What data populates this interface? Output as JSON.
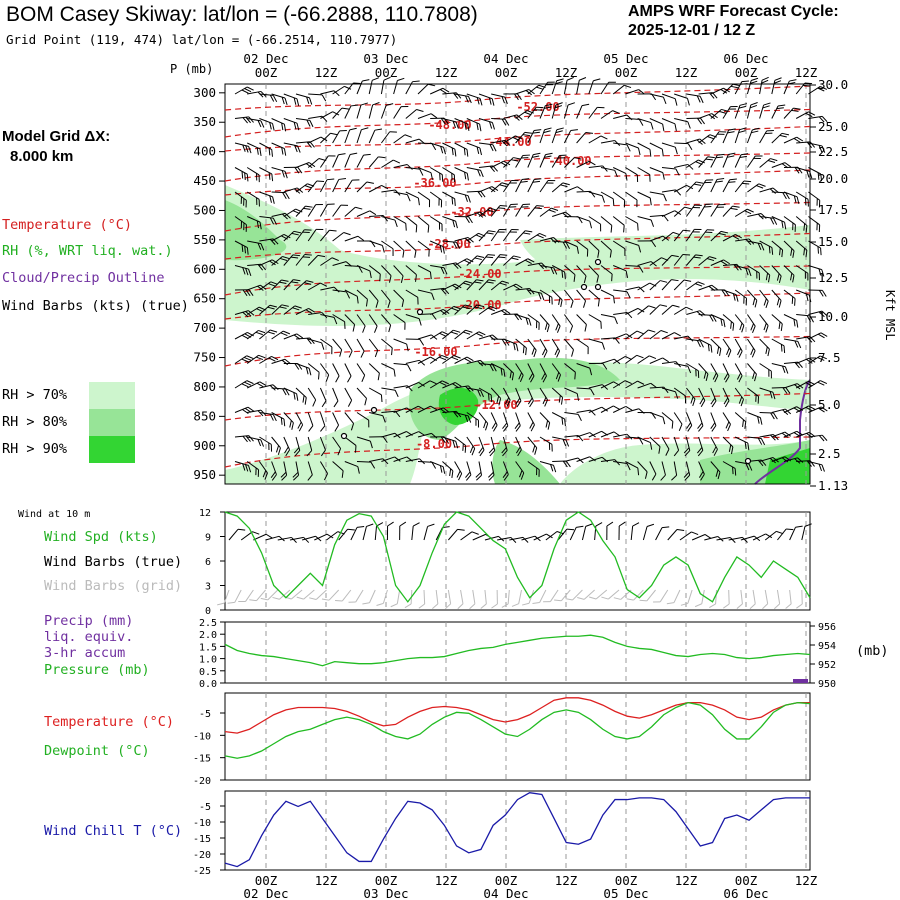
{
  "header": {
    "title": "BOM Casey Skiway:  lat/lon = (-66.2888, 110.7808)",
    "subtitle": "Grid Point (119, 474) lat/lon = (-66.2514, 110.7977)",
    "cycle_label": "AMPS WRF Forecast Cycle:",
    "cycle_value": "2025-12-01 / 12  Z"
  },
  "left_panel": {
    "grid_label": "Model Grid ΔX:",
    "grid_value": "8.000 km",
    "legend": [
      {
        "text": "Temperature (°C)",
        "color": "#d42020"
      },
      {
        "text": "RH (%, WRT liq. wat.)",
        "color": "#22b022"
      },
      {
        "text": "Cloud/Precip Outline",
        "color": "#7030a0"
      },
      {
        "text": "Wind Barbs (kts) (true)",
        "color": "#000000"
      }
    ],
    "rh_key": [
      {
        "text": "RH > 70%",
        "color": "#cdf5cd"
      },
      {
        "text": "RH > 80%",
        "color": "#97e497"
      },
      {
        "text": "RH > 90%",
        "color": "#33d533"
      }
    ]
  },
  "time_axis": {
    "ticks": [
      "00Z",
      "12Z",
      "00Z",
      "12Z",
      "00Z",
      "12Z",
      "00Z",
      "12Z",
      "00Z",
      "12Z"
    ],
    "dates": [
      "02 Dec",
      "03 Dec",
      "04 Dec",
      "05 Dec",
      "06 Dec"
    ]
  },
  "chart_data": [
    {
      "type": "heatmap",
      "name": "Time-height cross-section",
      "y_title": "P (mb)",
      "pressure_levels": [
        300,
        350,
        400,
        450,
        500,
        550,
        600,
        650,
        700,
        750,
        800,
        850,
        900,
        950
      ],
      "height_labels_title": "Kft MSL",
      "height_labels": [
        "30.0",
        "25.0",
        "22.5",
        "20.0",
        "17.5",
        "15.0",
        "12.5",
        "10.0",
        "7.5",
        "5.0",
        "2.5",
        "1.13"
      ],
      "temperature_contours": [
        "-52.00",
        "-48.00",
        "-44.00",
        "-40.00",
        "-36.00",
        "-32.00",
        "-28.00",
        "-24.00",
        "-20.00",
        "-16.00",
        "-12.00",
        "-8.00"
      ],
      "colors": {
        "temperature": "#d42020",
        "rh70": "#cdf5cd",
        "rh80": "#97e497",
        "rh90": "#33d533",
        "cloud": "#7030a0"
      }
    },
    {
      "type": "line",
      "name": "Wind at 10 m",
      "label": "Wind at 10 m",
      "legend": [
        "Wind Spd (kts)",
        "Wind Barbs (true)",
        "Wind Barbs (grid)"
      ],
      "y_ticks": [
        "12",
        "9",
        "6",
        "3",
        "0"
      ],
      "ylim": [
        0,
        12
      ],
      "series": [
        {
          "name": "Wind Spd (kts)",
          "color": "#22bb22",
          "values": [
            12,
            11.5,
            10,
            7,
            3,
            1.5,
            3,
            4.5,
            3,
            8,
            11,
            11.8,
            11.5,
            9,
            3,
            1,
            3,
            7,
            10.5,
            12,
            11.5,
            10,
            8.5,
            7.5,
            4,
            1.5,
            3,
            7.5,
            11,
            12,
            11,
            8.5,
            6.5,
            2.5,
            1.5,
            3,
            5.5,
            6.5,
            5.5,
            2,
            1,
            4,
            6.5,
            5.5,
            4,
            6,
            5,
            4,
            1.5
          ]
        }
      ]
    },
    {
      "type": "line",
      "name": "Precip / Pressure",
      "legend": [
        "Precip (mm)",
        "liq. equiv.",
        "3-hr accum",
        "Pressure (mb)"
      ],
      "left_ticks": [
        "2.5",
        "2.0",
        "1.5",
        "1.0",
        "0.5",
        "0.0"
      ],
      "right_ticks": [
        "956",
        "954",
        "952",
        "950"
      ],
      "right_unit": "(mb)",
      "series": [
        {
          "name": "Pressure (mb)",
          "color": "#22bb22",
          "values": [
            953.8,
            953.2,
            952.9,
            952.7,
            952.6,
            952.4,
            952.2,
            952.0,
            951.7,
            952.1,
            952.0,
            951.9,
            951.9,
            952.0,
            952.2,
            952.4,
            952.5,
            952.5,
            952.6,
            952.9,
            953.2,
            953.4,
            953.5,
            953.8,
            954.0,
            954.2,
            954.4,
            954.5,
            954.6,
            954.6,
            954.7,
            954.5,
            954.0,
            953.6,
            953.4,
            953.3,
            953.0,
            952.7,
            952.6,
            952.8,
            952.9,
            952.8,
            952.5,
            952.4,
            952.5,
            952.7,
            952.8,
            952.9,
            952.8
          ]
        }
      ]
    },
    {
      "type": "line",
      "name": "Temperature / Dewpoint",
      "legend": [
        {
          "text": "Temperature (°C)",
          "color": "#dd2020"
        },
        {
          "text": "Dewpoint (°C)",
          "color": "#22bb22"
        }
      ],
      "y_ticks": [
        "-5",
        "-10",
        "-15",
        "-20"
      ],
      "ylim": [
        -20,
        -2
      ],
      "series": [
        {
          "name": "Temperature (°C)",
          "color": "#dd2020",
          "values": [
            -10,
            -10.3,
            -9.5,
            -8,
            -6.5,
            -5.5,
            -5,
            -5,
            -5,
            -5.2,
            -5.8,
            -6.8,
            -8,
            -8.8,
            -8.5,
            -7,
            -5.8,
            -5,
            -4.8,
            -5,
            -5.5,
            -6.5,
            -7.5,
            -8,
            -7.5,
            -6.5,
            -5,
            -3.5,
            -3,
            -3,
            -3.5,
            -4.5,
            -5.8,
            -6.8,
            -7.2,
            -6.5,
            -5.5,
            -4.5,
            -4,
            -4,
            -4.5,
            -5.5,
            -7,
            -7.5,
            -7,
            -5.5,
            -4.5,
            -4,
            -4
          ]
        },
        {
          "name": "Dewpoint (°C)",
          "color": "#22bb22",
          "values": [
            -15,
            -15.5,
            -15,
            -14,
            -12.5,
            -11,
            -10,
            -9.5,
            -8.5,
            -7.5,
            -7,
            -7.5,
            -8.5,
            -10,
            -11,
            -11.5,
            -10.5,
            -8.5,
            -7,
            -6,
            -6.2,
            -7.5,
            -9,
            -10.5,
            -11,
            -9.5,
            -7.5,
            -6,
            -5.5,
            -6,
            -7.5,
            -9.5,
            -11,
            -11.5,
            -11,
            -9,
            -6.5,
            -5,
            -4,
            -4.5,
            -6.5,
            -9.5,
            -11.5,
            -11.5,
            -9,
            -6,
            -4.5,
            -4,
            -4.2
          ]
        }
      ]
    },
    {
      "type": "line",
      "name": "Wind Chill",
      "legend": [
        "Wind Chill T (°C)"
      ],
      "y_ticks": [
        "-5",
        "-10",
        "-15",
        "-20",
        "-25"
      ],
      "ylim": [
        -25,
        -2
      ],
      "series": [
        {
          "name": "Wind Chill T (°C)",
          "color": "#1a1aa8",
          "values": [
            -23,
            -24,
            -22,
            -15,
            -9,
            -5,
            -6.5,
            -5,
            -10,
            -15,
            -20,
            -22.5,
            -22.5,
            -16,
            -10,
            -5,
            -5.5,
            -7.5,
            -12,
            -18,
            -20,
            -19,
            -12,
            -9,
            -4.5,
            -2.5,
            -3,
            -10,
            -17,
            -17.5,
            -16,
            -9,
            -4.5,
            -4.5,
            -4,
            -4,
            -4.5,
            -8,
            -13,
            -18,
            -17,
            -10,
            -9,
            -10.5,
            -7.5,
            -4.5,
            -4,
            -4,
            -4
          ]
        }
      ]
    }
  ]
}
